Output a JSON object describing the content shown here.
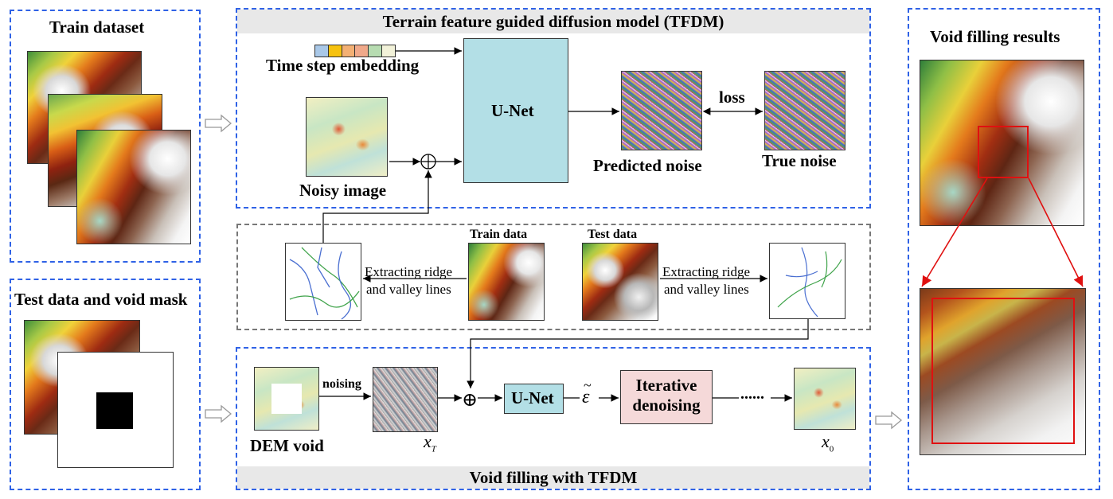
{
  "left_panel": {
    "train_title": "Train dataset",
    "test_title": "Test data and void mask"
  },
  "tfdm": {
    "title": "Terrain feature guided diffusion model (TFDM)",
    "time_step_label": "Time step embedding",
    "unet_label": "U-Net",
    "noisy_image_label": "Noisy image",
    "predicted_noise_label": "Predicted noise",
    "true_noise_label": "True noise",
    "loss_label": "loss",
    "embedding_colors": [
      "#a9c8e8",
      "#f6c20f",
      "#f3b074",
      "#f0a98a",
      "#b7dcb1",
      "#f2f2d9"
    ]
  },
  "extraction": {
    "train_data_label": "Train data",
    "test_data_label": "Test data",
    "extract_left_line1": "Extracting ridge",
    "extract_left_line2": "and valley lines",
    "extract_right_line1": "Extracting ridge",
    "extract_right_line2": "and valley lines"
  },
  "void_filling": {
    "title": "Void filling with TFDM",
    "dem_void_label": "DEM void",
    "noising_label": "noising",
    "xt_label": "x",
    "xt_sub": "T",
    "unet_label": "U-Net",
    "epsilon_label": "ε",
    "iterative_line1": "Iterative",
    "iterative_line2": "denoising",
    "dots_label": "......",
    "x0_label": "x",
    "x0_sub": "0",
    "plus_symbol": "⊕"
  },
  "results": {
    "title": "Void filling results"
  },
  "colors": {
    "panel_border": "#2f62e6",
    "unet_fill": "#b3dfe6",
    "iterative_fill": "#f5d9d9",
    "highlight": "#e01010",
    "header_fill": "#e8e8e8"
  }
}
